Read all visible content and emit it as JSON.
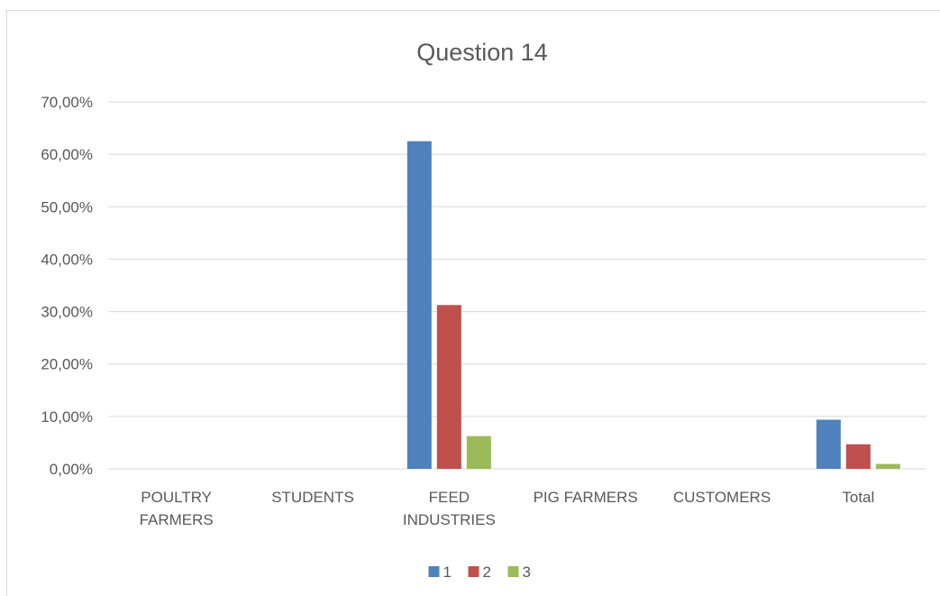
{
  "chart_data": {
    "type": "bar",
    "title": "Question 14",
    "xlabel": "",
    "ylabel": "",
    "categories": [
      [
        "POULTRY",
        "FARMERS"
      ],
      [
        "STUDENTS"
      ],
      [
        "FEED",
        "INDUSTRIES"
      ],
      [
        "PIG FARMERS"
      ],
      [
        "CUSTOMERS"
      ],
      [
        "Total"
      ]
    ],
    "series": [
      {
        "name": "1",
        "color": "#4f81bd",
        "values": [
          0,
          0,
          62.5,
          0,
          0,
          9.38
        ]
      },
      {
        "name": "2",
        "color": "#c0504d",
        "values": [
          0,
          0,
          31.25,
          0,
          0,
          4.69
        ]
      },
      {
        "name": "3",
        "color": "#9bbb59",
        "values": [
          0,
          0,
          6.25,
          0,
          0,
          0.94
        ]
      }
    ],
    "ylim": [
      0,
      70
    ],
    "yticks": [
      0,
      10,
      20,
      30,
      40,
      50,
      60,
      70
    ],
    "ytick_labels": [
      "0,00%",
      "10,00%",
      "20,00%",
      "30,00%",
      "40,00%",
      "50,00%",
      "60,00%",
      "70,00%"
    ],
    "grid": true,
    "legend": "bottom"
  }
}
